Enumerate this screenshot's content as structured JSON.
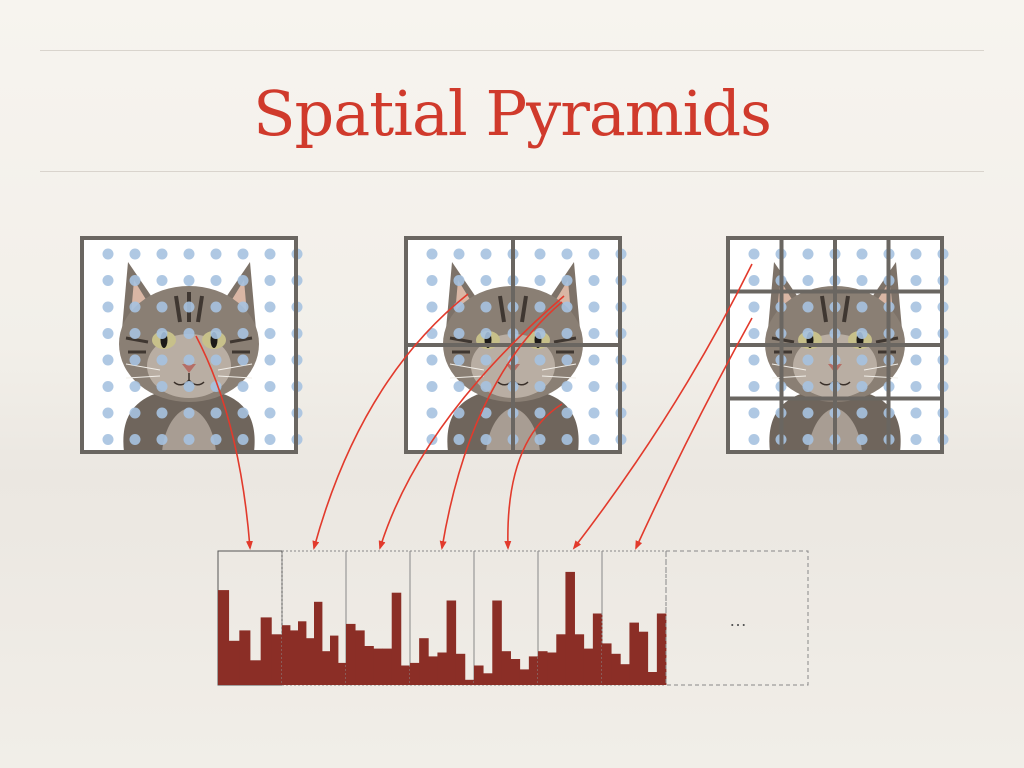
{
  "title": "Spatial Pyramids",
  "colors": {
    "title": "#d03a2c",
    "frame": "#6a6661",
    "dot": "#a6c2e0",
    "bar": "#8b2e26",
    "arrow": "#e23a2c"
  },
  "panels": [
    {
      "name": "level-0",
      "grid": 1
    },
    {
      "name": "level-1",
      "grid": 2
    },
    {
      "name": "level-2",
      "grid": 4
    }
  ],
  "histograms": [
    [
      0.73,
      0.34,
      0.42,
      0.19,
      0.52,
      0.39
    ],
    [
      0.46,
      0.42,
      0.49,
      0.36,
      0.64,
      0.26,
      0.38,
      0.17
    ],
    [
      0.47,
      0.42,
      0.3,
      0.28,
      0.28,
      0.71,
      0.15
    ],
    [
      0.17,
      0.36,
      0.22,
      0.25,
      0.65,
      0.24,
      0.04
    ],
    [
      0.15,
      0.09,
      0.65,
      0.26,
      0.2,
      0.12,
      0.22
    ],
    [
      0.26,
      0.25,
      0.39,
      0.87,
      0.39,
      0.28,
      0.55
    ],
    [
      0.32,
      0.24,
      0.16,
      0.48,
      0.41,
      0.1,
      0.55
    ]
  ],
  "ellipsis": "…"
}
